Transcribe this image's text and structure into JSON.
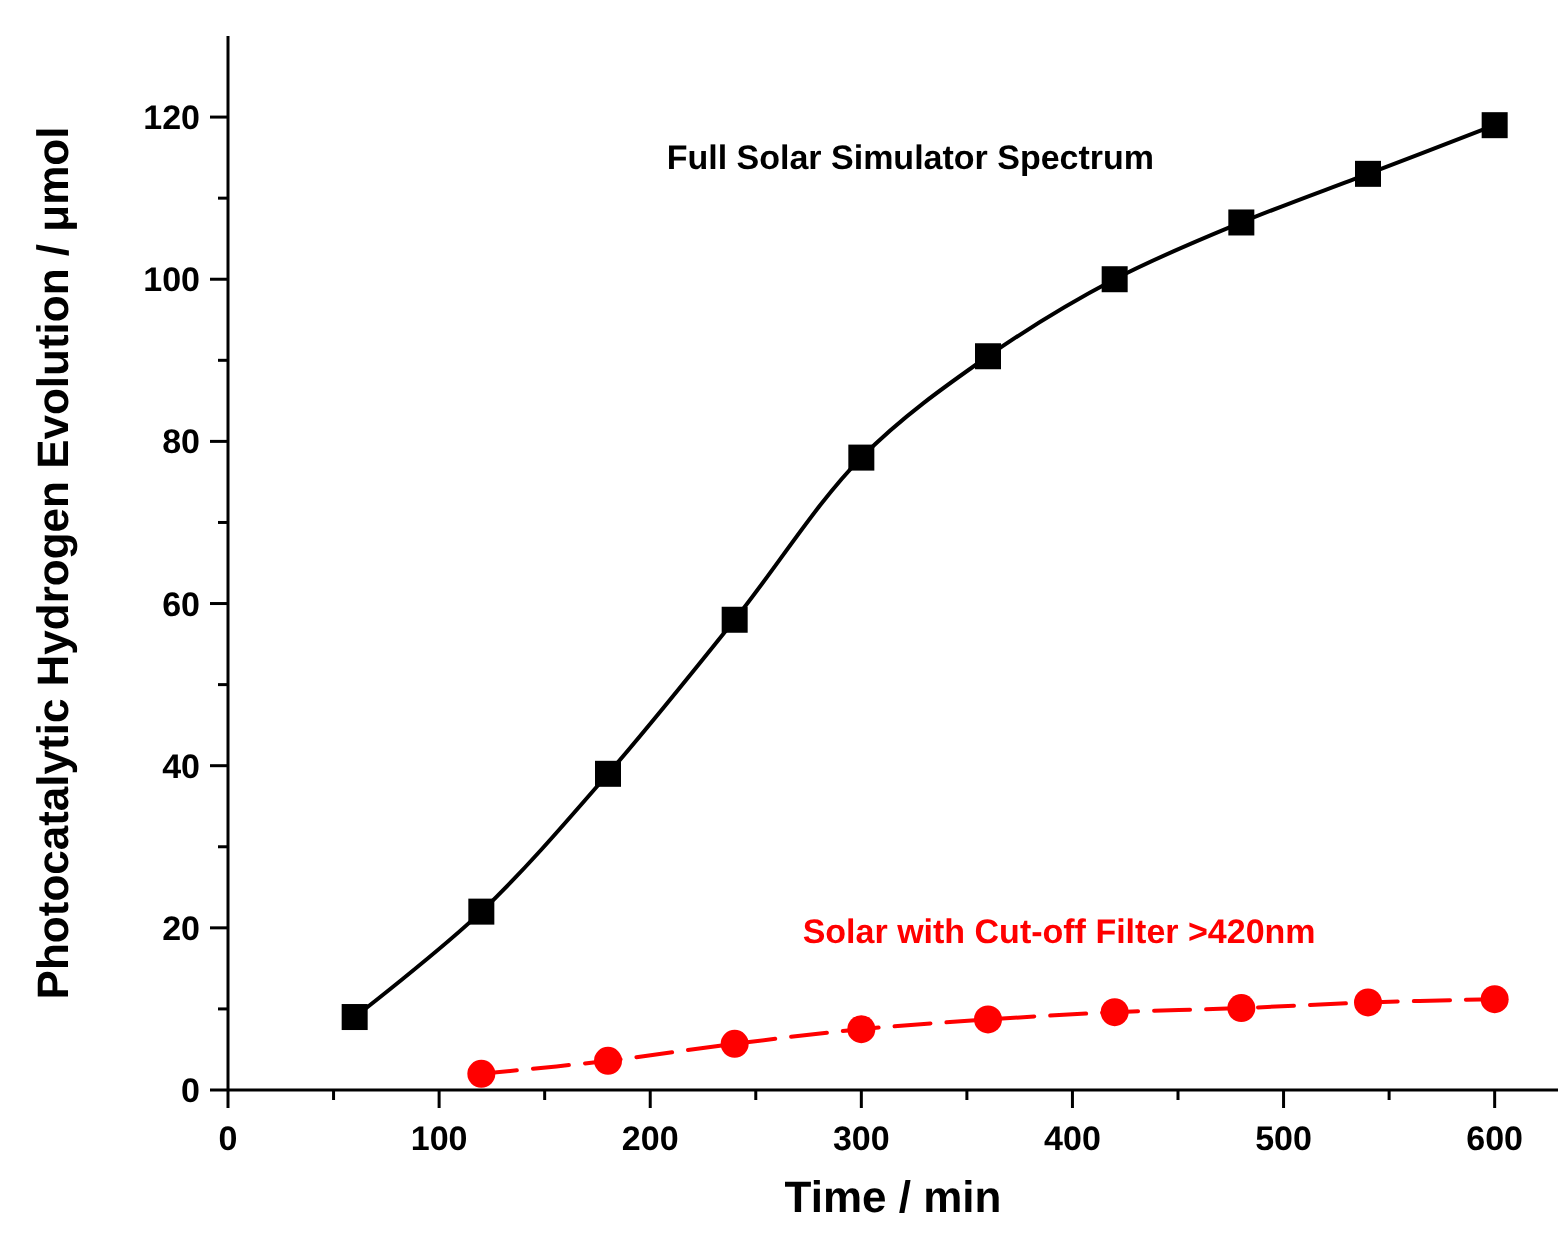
{
  "chart_data": {
    "type": "line",
    "xlabel": "Time / min",
    "ylabel": "Photocatalytic Hydrogen Evolution / μmol",
    "xlim": [
      0,
      630
    ],
    "ylim": [
      0,
      130
    ],
    "xticks": [
      0,
      {
        "value": 50,
        "label": null
      },
      100,
      {
        "value": 150,
        "label": null
      },
      200,
      {
        "value": 250,
        "label": null
      },
      300,
      {
        "value": 350,
        "label": null
      },
      400,
      {
        "value": 450,
        "label": null
      },
      500,
      {
        "value": 550,
        "label": null
      },
      600
    ],
    "yticks": [
      0,
      {
        "value": 10,
        "label": null
      },
      20,
      {
        "value": 30,
        "label": null
      },
      40,
      {
        "value": 50,
        "label": null
      },
      60,
      {
        "value": 70,
        "label": null
      },
      80,
      {
        "value": 90,
        "label": null
      },
      100,
      {
        "value": 110,
        "label": null
      },
      120
    ],
    "grid": false,
    "series": [
      {
        "name": "Full Solar Simulator Spectrum",
        "color": "#000000",
        "marker": "square",
        "line_style": "solid",
        "x": [
          60,
          120,
          180,
          240,
          300,
          360,
          420,
          480,
          540,
          600
        ],
        "values": [
          9,
          22,
          39,
          58,
          78,
          90.5,
          100,
          107,
          113,
          119
        ]
      },
      {
        "name": "Solar with Cut-off Filter >420nm",
        "color": "#ff0000",
        "marker": "circle",
        "line_style": "dashed",
        "x": [
          120,
          180,
          240,
          300,
          360,
          420,
          480,
          540,
          600
        ],
        "values": [
          2,
          3.6,
          5.7,
          7.5,
          8.7,
          9.6,
          10.1,
          10.8,
          11.2
        ]
      }
    ]
  }
}
